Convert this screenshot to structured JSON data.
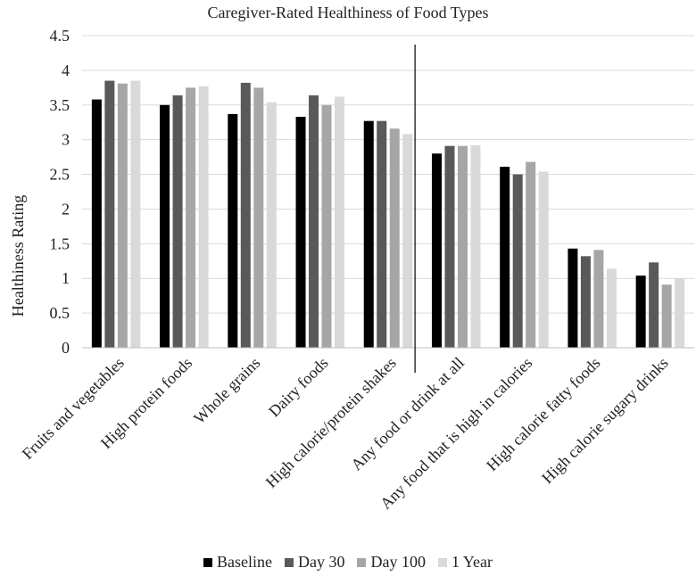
{
  "chart_data": {
    "type": "bar",
    "title": "Caregiver-Rated Healthiness of Food Types",
    "xlabel": "",
    "ylabel": "Healthiness Rating",
    "ylim": [
      0,
      4.5
    ],
    "yticks": [
      "0",
      "0.5",
      "1",
      "1.5",
      "2",
      "2.5",
      "3",
      "3.5",
      "4",
      "4.5"
    ],
    "grid": true,
    "legend_position": "bottom",
    "divider_after_category": 5,
    "categories": [
      "Fruits and vegetables",
      "High protein foods",
      "Whole grains",
      "Dairy foods",
      "High calorie/protein shakes",
      "Any food or drink at all",
      "Any food that is high in calories",
      "High calorie fatty foods",
      "High calorie sugary drinks"
    ],
    "series": [
      {
        "name": "Baseline",
        "color": "#000000",
        "values": [
          3.58,
          3.5,
          3.37,
          3.33,
          3.27,
          2.8,
          2.61,
          1.43,
          1.04
        ]
      },
      {
        "name": "Day 30",
        "color": "#595959",
        "values": [
          3.85,
          3.64,
          3.82,
          3.64,
          3.27,
          2.91,
          2.5,
          1.32,
          1.23
        ]
      },
      {
        "name": "Day 100",
        "color": "#a6a6a6",
        "values": [
          3.81,
          3.75,
          3.75,
          3.5,
          3.16,
          2.91,
          2.68,
          1.41,
          0.91
        ]
      },
      {
        "name": "1 Year",
        "color": "#d9d9d9",
        "values": [
          3.85,
          3.77,
          3.54,
          3.62,
          3.08,
          2.92,
          2.54,
          1.14,
          1.0
        ]
      }
    ]
  }
}
